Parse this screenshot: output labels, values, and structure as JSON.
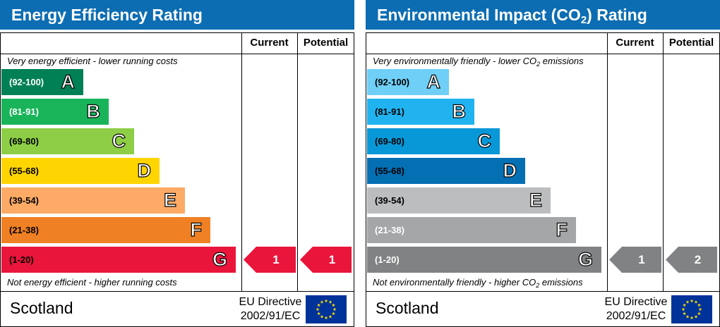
{
  "panels": [
    {
      "title": "Energy Efficiency Rating",
      "title_sub": "",
      "title_after": "",
      "col_current": "Current",
      "col_potential": "Potential",
      "top_note": "Very energy efficient - lower running costs",
      "top_note_sub": "",
      "top_note_after": "",
      "bottom_note": "Not energy efficient - higher running costs",
      "bottom_note_sub": "",
      "bottom_note_after": "",
      "bands": [
        {
          "range": "(92-100)",
          "letter": "A",
          "color": "#008054",
          "text_color": "#ffffff"
        },
        {
          "range": "(81-91)",
          "letter": "B",
          "color": "#19b459",
          "text_color": "#ffffff"
        },
        {
          "range": "(69-80)",
          "letter": "C",
          "color": "#8dce46",
          "text_color": "#000000"
        },
        {
          "range": "(55-68)",
          "letter": "D",
          "color": "#ffd500",
          "text_color": "#000000"
        },
        {
          "range": "(39-54)",
          "letter": "E",
          "color": "#fcaa65",
          "text_color": "#000000"
        },
        {
          "range": "(21-38)",
          "letter": "F",
          "color": "#ef8023",
          "text_color": "#000000"
        },
        {
          "range": "(1-20)",
          "letter": "G",
          "color": "#e9153b",
          "text_color": "#000000"
        }
      ],
      "current": {
        "value": "1",
        "band": "G",
        "color": "#e9153b"
      },
      "potential": {
        "value": "1",
        "band": "G",
        "color": "#e9153b"
      },
      "country": "Scotland",
      "directive_line1": "EU Directive",
      "directive_line2": "2002/91/EC",
      "flag_icon": "eu-flag-icon"
    },
    {
      "title": "Environmental Impact (CO",
      "title_sub": "2",
      "title_after": ") Rating",
      "col_current": "Current",
      "col_potential": "Potential",
      "top_note": "Very environmentally friendly - lower CO",
      "top_note_sub": "2",
      "top_note_after": " emissions",
      "bottom_note": "Not environmentally friendly - higher CO",
      "bottom_note_sub": "2",
      "bottom_note_after": " emissions",
      "bands": [
        {
          "range": "(92-100)",
          "letter": "A",
          "color": "#6fcff6",
          "text_color": "#000000"
        },
        {
          "range": "(81-91)",
          "letter": "B",
          "color": "#21b3f0",
          "text_color": "#000000"
        },
        {
          "range": "(69-80)",
          "letter": "C",
          "color": "#0898d7",
          "text_color": "#000000"
        },
        {
          "range": "(55-68)",
          "letter": "D",
          "color": "#056fb3",
          "text_color": "#000000"
        },
        {
          "range": "(39-54)",
          "letter": "E",
          "color": "#bbbdbf",
          "text_color": "#000000"
        },
        {
          "range": "(21-38)",
          "letter": "F",
          "color": "#a4a6a8",
          "text_color": "#ffffff"
        },
        {
          "range": "(1-20)",
          "letter": "G",
          "color": "#808284",
          "text_color": "#ffffff"
        }
      ],
      "current": {
        "value": "1",
        "band": "G",
        "color": "#808284"
      },
      "potential": {
        "value": "2",
        "band": "G",
        "color": "#808284"
      },
      "country": "Scotland",
      "directive_line1": "EU Directive",
      "directive_line2": "2002/91/EC",
      "flag_icon": "eu-flag-icon"
    }
  ]
}
